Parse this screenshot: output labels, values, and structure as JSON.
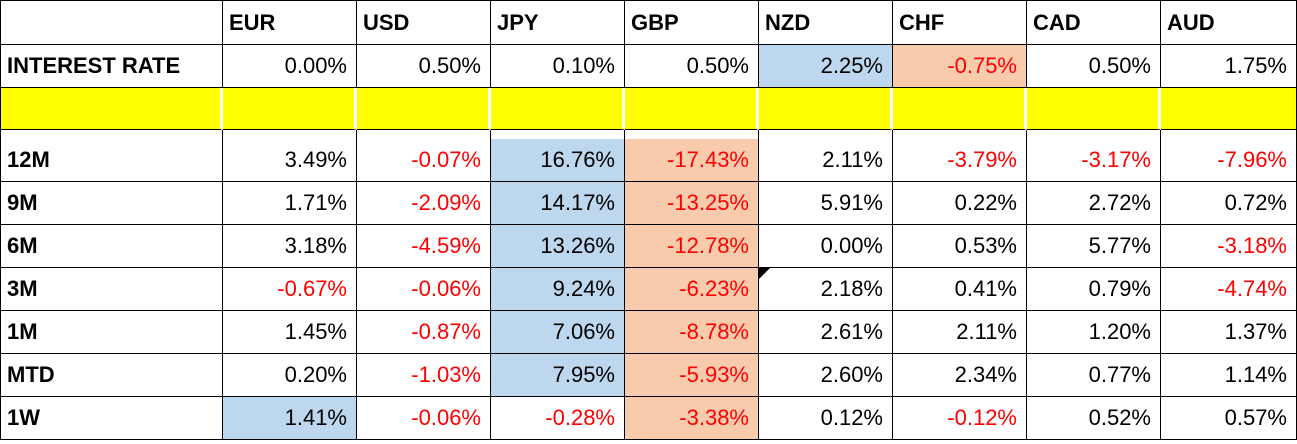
{
  "colors": {
    "highlight_blue": "#BDD7EE",
    "highlight_orange": "#F8CBAD",
    "highlight_yellow": "#FFFF00",
    "negative_red": "#FF0000",
    "text_black": "#000000",
    "border_black": "#000000"
  },
  "table": {
    "corner_label": "",
    "currency_headers": [
      "EUR",
      "USD",
      "JPY",
      "GBP",
      "NZD",
      "CHF",
      "CAD",
      "AUD"
    ],
    "rows": [
      {
        "type": "data",
        "label": "INTEREST RATE",
        "cells": [
          {
            "v": "0.00%"
          },
          {
            "v": "0.50%"
          },
          {
            "v": "0.10%"
          },
          {
            "v": "0.50%"
          },
          {
            "v": "2.25%",
            "bg": "blue"
          },
          {
            "v": "-0.75%",
            "bg": "orange"
          },
          {
            "v": "0.50%"
          },
          {
            "v": "1.75%"
          }
        ]
      },
      {
        "type": "spacer"
      },
      {
        "type": "gap"
      },
      {
        "type": "data",
        "label": "12M",
        "cells": [
          {
            "v": "3.49%"
          },
          {
            "v": "-0.07%"
          },
          {
            "v": "16.76%",
            "bg": "blue"
          },
          {
            "v": "-17.43%",
            "bg": "orange"
          },
          {
            "v": "2.11%"
          },
          {
            "v": "-3.79%"
          },
          {
            "v": "-3.17%"
          },
          {
            "v": "-7.96%"
          }
        ]
      },
      {
        "type": "data",
        "label": "9M",
        "cells": [
          {
            "v": "1.71%"
          },
          {
            "v": "-2.09%"
          },
          {
            "v": "14.17%",
            "bg": "blue"
          },
          {
            "v": "-13.25%",
            "bg": "orange"
          },
          {
            "v": "5.91%"
          },
          {
            "v": "0.22%"
          },
          {
            "v": "2.72%"
          },
          {
            "v": "0.72%"
          }
        ]
      },
      {
        "type": "data",
        "label": "6M",
        "cells": [
          {
            "v": "3.18%"
          },
          {
            "v": "-4.59%"
          },
          {
            "v": "13.26%",
            "bg": "blue"
          },
          {
            "v": "-12.78%",
            "bg": "orange"
          },
          {
            "v": "0.00%"
          },
          {
            "v": "0.53%"
          },
          {
            "v": "5.77%"
          },
          {
            "v": "-3.18%"
          }
        ]
      },
      {
        "type": "data",
        "label": "3M",
        "cells": [
          {
            "v": "-0.67%"
          },
          {
            "v": "-0.06%"
          },
          {
            "v": "9.24%",
            "bg": "blue"
          },
          {
            "v": "-6.23%",
            "bg": "orange"
          },
          {
            "v": "2.18%",
            "marker": "corner-flag"
          },
          {
            "v": "0.41%"
          },
          {
            "v": "0.79%"
          },
          {
            "v": "-4.74%"
          }
        ]
      },
      {
        "type": "data",
        "label": "1M",
        "cells": [
          {
            "v": "1.45%"
          },
          {
            "v": "-0.87%"
          },
          {
            "v": "7.06%",
            "bg": "blue"
          },
          {
            "v": "-8.78%",
            "bg": "orange"
          },
          {
            "v": "2.61%"
          },
          {
            "v": "2.11%"
          },
          {
            "v": "1.20%"
          },
          {
            "v": "1.37%"
          }
        ]
      },
      {
        "type": "data",
        "label": "MTD",
        "cells": [
          {
            "v": "0.20%"
          },
          {
            "v": "-1.03%"
          },
          {
            "v": "7.95%",
            "bg": "blue"
          },
          {
            "v": "-5.93%",
            "bg": "orange"
          },
          {
            "v": "2.60%"
          },
          {
            "v": "2.34%"
          },
          {
            "v": "0.77%"
          },
          {
            "v": "1.14%"
          }
        ]
      },
      {
        "type": "data",
        "label": "1W",
        "cells": [
          {
            "v": "1.41%",
            "bg": "blue"
          },
          {
            "v": "-0.06%"
          },
          {
            "v": "-0.28%"
          },
          {
            "v": "-3.38%",
            "bg": "orange"
          },
          {
            "v": "0.12%"
          },
          {
            "v": "-0.12%"
          },
          {
            "v": "0.52%"
          },
          {
            "v": "0.57%"
          }
        ]
      }
    ]
  }
}
